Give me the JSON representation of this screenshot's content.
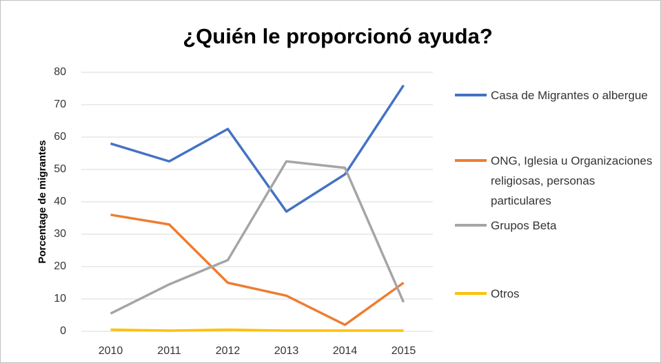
{
  "chart_data": {
    "type": "line",
    "title": "¿Quién le proporcionó ayuda?",
    "y_label": "Porcentage de migrantes",
    "categories": [
      "2010",
      "2011",
      "2012",
      "2013",
      "2014",
      "2015"
    ],
    "series": [
      {
        "name": "Casa de Migrantes o albergue",
        "color": "#4472c4",
        "values": [
          58,
          52.5,
          62.5,
          37,
          48.5,
          76
        ]
      },
      {
        "name": "ONG, Iglesia u Organizaciones religiosas, personas particulares",
        "color": "#ed7d31",
        "values": [
          36,
          33,
          15,
          11,
          2,
          15
        ]
      },
      {
        "name": "Grupos Beta",
        "color": "#a5a5a5",
        "values": [
          5.5,
          14.5,
          22,
          52.5,
          50.5,
          9
        ]
      },
      {
        "name": "Otros",
        "color": "#ffc000",
        "values": [
          0.5,
          0.2,
          0.5,
          0.2,
          0.2,
          0.2
        ]
      }
    ],
    "ylim": [
      0,
      80
    ],
    "yticks": [
      0,
      10,
      20,
      30,
      40,
      50,
      60,
      70,
      80
    ],
    "grid": true,
    "legend": "right"
  }
}
